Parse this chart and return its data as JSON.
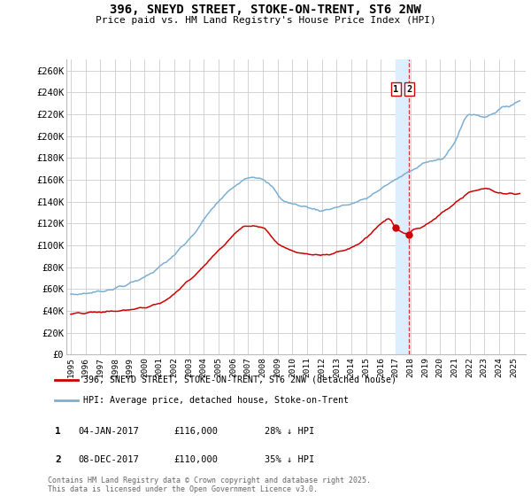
{
  "title": "396, SNEYD STREET, STOKE-ON-TRENT, ST6 2NW",
  "subtitle": "Price paid vs. HM Land Registry's House Price Index (HPI)",
  "ylabel_ticks": [
    "£0",
    "£20K",
    "£40K",
    "£60K",
    "£80K",
    "£100K",
    "£120K",
    "£140K",
    "£160K",
    "£180K",
    "£200K",
    "£220K",
    "£240K",
    "£260K"
  ],
  "ytick_values": [
    0,
    20000,
    40000,
    60000,
    80000,
    100000,
    120000,
    140000,
    160000,
    180000,
    200000,
    220000,
    240000,
    260000
  ],
  "ylim": [
    0,
    270000
  ],
  "xlim_start": 1994.7,
  "xlim_end": 2025.8,
  "legend_line1": "396, SNEYD STREET, STOKE-ON-TRENT, ST6 2NW (detached house)",
  "legend_line2": "HPI: Average price, detached house, Stoke-on-Trent",
  "annotation1_label": "1",
  "annotation1_date": "04-JAN-2017",
  "annotation1_price": "£116,000",
  "annotation1_hpi": "28% ↓ HPI",
  "annotation2_label": "2",
  "annotation2_date": "08-DEC-2017",
  "annotation2_price": "£110,000",
  "annotation2_hpi": "35% ↓ HPI",
  "sale1_year": 2017.01,
  "sale1_price": 116000,
  "sale2_year": 2017.92,
  "sale2_price": 110000,
  "copyright_text": "Contains HM Land Registry data © Crown copyright and database right 2025.\nThis data is licensed under the Open Government Licence v3.0.",
  "red_line_color": "#cc0000",
  "blue_line_color": "#7bafd4",
  "grid_color": "#cccccc",
  "background_color": "#ffffff",
  "annotation_vline_color": "#cc0000",
  "annotation_box_color": "#cc0000",
  "vspan_color": "#ddeeff"
}
